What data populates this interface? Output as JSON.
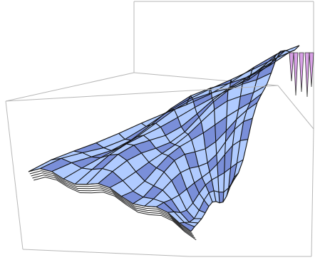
{
  "chart_data": {
    "type": "surface-3d",
    "title": "",
    "xlabel": "",
    "ylabel": "",
    "zlabel": "",
    "axes_shown": false,
    "bounding_box": true,
    "mesh": {
      "rows": 14,
      "cols": 12
    },
    "surface_colors": {
      "base": "#a9c7ff",
      "light": "#dce8ff",
      "shadow": "#6f86d6",
      "accent": "#d8a0e6",
      "mesh_line": "#111111"
    },
    "box_color": "#b7b7b7"
  }
}
